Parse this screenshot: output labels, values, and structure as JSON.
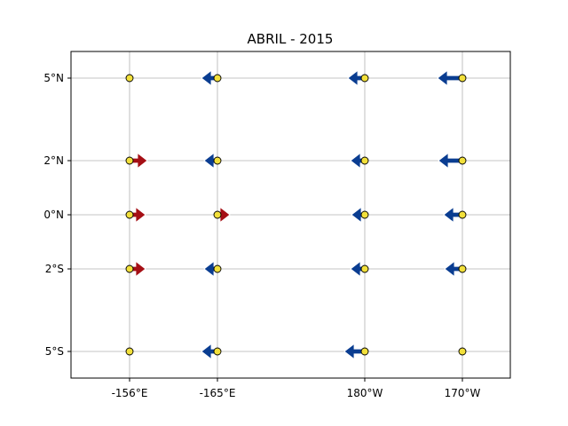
{
  "title": "ABRIL - 2015",
  "colors": {
    "station_fill": "#f2e03b",
    "station_edge": "#000000",
    "westward_arrow": "#0a3d91",
    "eastward_arrow": "#a50f15",
    "grid": "#b0b0b0",
    "frame": "#000000"
  },
  "map": {
    "x_ticks": [
      "-156°E",
      "-165°E",
      "180°W",
      "170°W"
    ],
    "y_ticks": [
      "5°N",
      "2°N",
      "0°N",
      "2°S",
      "5°S"
    ],
    "grid": true
  },
  "stations": {
    "latitudes": [
      "5°N",
      "2°N",
      "0°N",
      "2°S",
      "5°S"
    ],
    "longitudes": [
      "-156°E",
      "-165°E",
      "180°W",
      "170°W"
    ],
    "note_vectors": "zonal current direction and relative magnitude per buoy",
    "rows": [
      {
        "lat": "5°N",
        "u": [
          0,
          -1.0,
          -1.1,
          -2.0
        ]
      },
      {
        "lat": "2°N",
        "u": [
          1.2,
          -0.7,
          -0.8,
          -1.9
        ]
      },
      {
        "lat": "0°N",
        "u": [
          1.0,
          0.6,
          -0.7,
          -1.3
        ]
      },
      {
        "lat": "2°S",
        "u": [
          1.0,
          -0.7,
          -0.8,
          -1.2
        ]
      },
      {
        "lat": "5°S",
        "u": [
          0,
          -1.0,
          -1.5,
          0
        ]
      }
    ]
  }
}
